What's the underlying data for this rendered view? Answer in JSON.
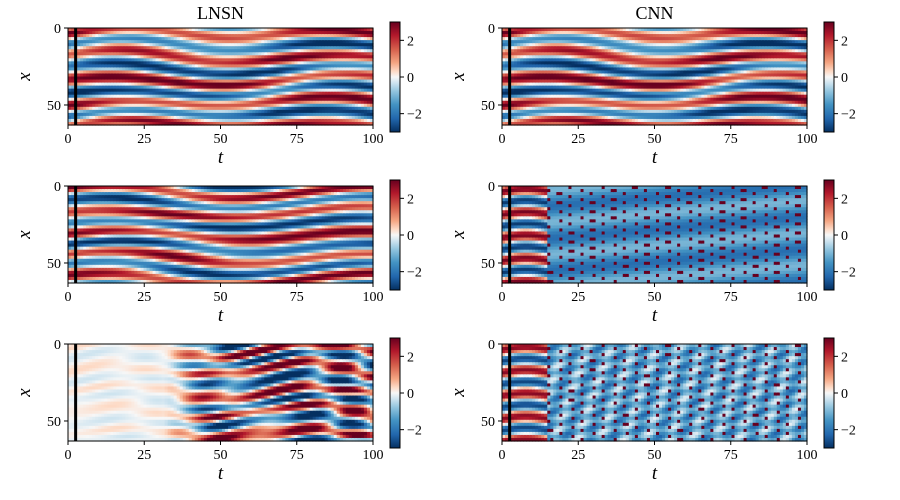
{
  "chart_data": [
    {
      "type": "heatmap",
      "column_title": "LNSN",
      "row": 0,
      "col": 0,
      "pattern": "wavy",
      "amplitude": 0.95,
      "xlabel": "t",
      "ylabel": "x",
      "xlim": [
        0,
        100
      ],
      "ylim": [
        0,
        63
      ],
      "xticks": [
        "0",
        "25",
        "50",
        "75",
        "100"
      ],
      "yticks": [
        "0",
        "50"
      ],
      "colorbar": {
        "ticks": [
          "2",
          "0",
          "−2"
        ],
        "range": [
          -3,
          3
        ],
        "colormap": "RdBu_r"
      },
      "vline_t": 2.5
    },
    {
      "type": "heatmap",
      "column_title": "CNN",
      "row": 0,
      "col": 1,
      "pattern": "wavy",
      "amplitude": 0.95,
      "xlabel": "t",
      "ylabel": "x",
      "xlim": [
        0,
        100
      ],
      "ylim": [
        0,
        63
      ],
      "xticks": [
        "0",
        "25",
        "50",
        "75",
        "100"
      ],
      "yticks": [
        "0",
        "50"
      ],
      "colorbar": {
        "ticks": [
          "2",
          "0",
          "−2"
        ],
        "range": [
          -3,
          3
        ],
        "colormap": "RdBu_r"
      },
      "vline_t": 2.5
    },
    {
      "type": "heatmap",
      "column_title": "",
      "row": 1,
      "col": 0,
      "pattern": "wavy2",
      "amplitude": 0.95,
      "xlabel": "t",
      "ylabel": "x",
      "xlim": [
        0,
        100
      ],
      "ylim": [
        0,
        63
      ],
      "xticks": [
        "0",
        "25",
        "50",
        "75",
        "100"
      ],
      "yticks": [
        "0",
        "50"
      ],
      "colorbar": {
        "ticks": [
          "2",
          "0",
          "−2"
        ],
        "range": [
          -3,
          3
        ],
        "colormap": "RdBu_r"
      },
      "vline_t": 2.5
    },
    {
      "type": "heatmap",
      "column_title": "",
      "row": 1,
      "col": 1,
      "pattern": "diagonal",
      "amplitude": 0.95,
      "xlabel": "t",
      "ylabel": "x",
      "xlim": [
        0,
        100
      ],
      "ylim": [
        0,
        63
      ],
      "xticks": [
        "0",
        "25",
        "50",
        "75",
        "100"
      ],
      "yticks": [
        "0",
        "50"
      ],
      "colorbar": {
        "ticks": [
          "2",
          "0",
          "−2"
        ],
        "range": [
          -3,
          3
        ],
        "colormap": "RdBu_r"
      },
      "vline_t": 2.5
    },
    {
      "type": "heatmap",
      "column_title": "",
      "row": 2,
      "col": 0,
      "pattern": "growing",
      "amplitude": 1.0,
      "xlabel": "t",
      "ylabel": "x",
      "xlim": [
        0,
        100
      ],
      "ylim": [
        0,
        63
      ],
      "xticks": [
        "0",
        "25",
        "50",
        "75",
        "100"
      ],
      "yticks": [
        "0",
        "50"
      ],
      "colorbar": {
        "ticks": [
          "2",
          "0",
          "−2"
        ],
        "range": [
          -3,
          3
        ],
        "colormap": "RdBu_r"
      },
      "vline_t": 2.5
    },
    {
      "type": "heatmap",
      "column_title": "",
      "row": 2,
      "col": 1,
      "pattern": "diagonal_noisy",
      "amplitude": 1.0,
      "xlabel": "t",
      "ylabel": "x",
      "xlim": [
        0,
        100
      ],
      "ylim": [
        0,
        63
      ],
      "xticks": [
        "0",
        "25",
        "50",
        "75",
        "100"
      ],
      "yticks": [
        "0",
        "50"
      ],
      "colorbar": {
        "ticks": [
          "2",
          "0",
          "−2"
        ],
        "range": [
          -3,
          3
        ],
        "colormap": "RdBu_r"
      },
      "vline_t": 2.5
    }
  ]
}
